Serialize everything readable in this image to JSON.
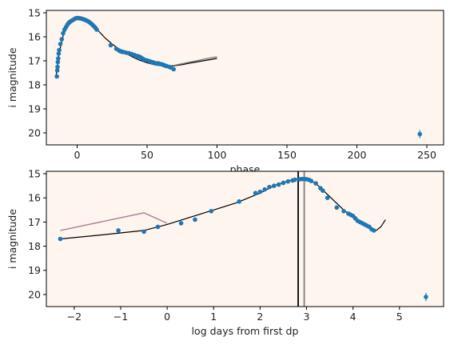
{
  "chart_data": [
    {
      "type": "scatter",
      "xlabel": "phase",
      "ylabel": "i magnitude",
      "xlim": [
        -22,
        262
      ],
      "ylim": [
        20.5,
        14.9
      ],
      "y_inverted": true,
      "xticks": [
        0,
        50,
        100,
        150,
        200,
        250
      ],
      "yticks": [
        15,
        16,
        17,
        18,
        19,
        20
      ],
      "background": "#fdf5ee",
      "colors": {
        "points": "#1f77b4",
        "model": "#000000",
        "model_alt": "#7f7f7f"
      },
      "series": [
        {
          "kind": "points",
          "x": [
            -14.5,
            -14.2,
            -14.0,
            -13.8,
            -13.5,
            -13.2,
            -12.8,
            -12.0,
            -11.0,
            -10.0,
            -9.0,
            -8.0,
            -7.0,
            -6.0,
            -5.0,
            -4.0,
            -3.0,
            -2.0,
            -1.0,
            0.0,
            1.0,
            2.0,
            3.0,
            4.0,
            5.0,
            6.0,
            7.0,
            8.0,
            9.0,
            10.0,
            11.0,
            12.0,
            13.0,
            14.0,
            24.0,
            28.0,
            30.0,
            31.0,
            32.0,
            33.0,
            35.0,
            37.0,
            39.0,
            41.0,
            43.0,
            44.0,
            45.0,
            46.0,
            47.0,
            48.0,
            50.0,
            52.0,
            53.0,
            54.0,
            55.0,
            56.0,
            57.0,
            58.0,
            59.0,
            60.0,
            61.0,
            62.0,
            63.0,
            64.0,
            66.0,
            67.0,
            69.0,
            245.0
          ],
          "y": [
            17.65,
            17.4,
            17.25,
            17.05,
            16.9,
            16.7,
            16.55,
            16.3,
            16.1,
            15.85,
            15.7,
            15.6,
            15.5,
            15.42,
            15.37,
            15.33,
            15.3,
            15.26,
            15.23,
            15.22,
            15.22,
            15.23,
            15.24,
            15.26,
            15.28,
            15.3,
            15.33,
            15.36,
            15.4,
            15.45,
            15.5,
            15.56,
            15.62,
            15.7,
            16.35,
            16.5,
            16.57,
            16.6,
            16.62,
            16.63,
            16.66,
            16.68,
            16.72,
            16.76,
            16.8,
            16.82,
            16.84,
            16.88,
            16.92,
            16.95,
            16.98,
            17.02,
            17.05,
            17.06,
            17.08,
            17.1,
            17.12,
            17.1,
            17.13,
            17.14,
            17.15,
            17.18,
            17.2,
            17.22,
            17.25,
            17.28,
            17.35,
            20.05
          ]
        },
        {
          "kind": "line",
          "name": "",
          "x": [
            -15,
            -13,
            -10,
            -7,
            -4,
            -1,
            2,
            5,
            8,
            12,
            16,
            20,
            25,
            30,
            35,
            40,
            45,
            50,
            55,
            60,
            65,
            70,
            75,
            80,
            85,
            90,
            95,
            100
          ],
          "y": [
            17.6,
            16.7,
            15.95,
            15.55,
            15.33,
            15.22,
            15.2,
            15.24,
            15.35,
            15.55,
            15.8,
            16.05,
            16.3,
            16.52,
            16.7,
            16.85,
            16.98,
            17.08,
            17.16,
            17.2,
            17.22,
            17.2,
            17.16,
            17.1,
            17.05,
            17.0,
            16.95,
            16.9
          ]
        },
        {
          "kind": "line",
          "name": "",
          "x": [
            70,
            75,
            80,
            85,
            90,
            95,
            100
          ],
          "y": [
            17.18,
            17.12,
            17.06,
            17.0,
            16.94,
            16.88,
            16.83
          ]
        }
      ]
    },
    {
      "type": "scatter",
      "xlabel": "log days from first dp",
      "ylabel": "i magnitude",
      "xlim": [
        -2.6,
        5.95
      ],
      "ylim": [
        20.5,
        14.9
      ],
      "y_inverted": true,
      "xticks": [
        -2,
        -1,
        0,
        1,
        2,
        3,
        4,
        5
      ],
      "yticks": [
        15,
        16,
        17,
        18,
        19,
        20
      ],
      "background": "#fdf5ee",
      "colors": {
        "points": "#1f77b4",
        "model": "#000000",
        "model_alt": "#7f7f7f",
        "early": "#b07c9e"
      },
      "vlines": [
        {
          "x": 2.82,
          "color": "#000000"
        },
        {
          "x": 2.95,
          "color": "#7f7f7f"
        }
      ],
      "series": [
        {
          "kind": "points",
          "x": [
            -2.3,
            -1.05,
            -0.5,
            -0.2,
            0.3,
            0.6,
            0.95,
            1.55,
            1.9,
            2.0,
            2.1,
            2.2,
            2.3,
            2.4,
            2.5,
            2.6,
            2.7,
            2.75,
            2.85,
            2.9,
            2.95,
            3.0,
            3.05,
            3.1,
            3.2,
            3.3,
            3.35,
            3.45,
            3.65,
            3.8,
            3.9,
            3.95,
            4.0,
            4.05,
            4.1,
            4.15,
            4.2,
            4.25,
            4.3,
            4.35,
            4.4,
            4.45,
            5.57
          ],
          "y": [
            17.7,
            17.35,
            17.4,
            17.2,
            17.05,
            16.9,
            16.55,
            16.15,
            15.8,
            15.75,
            15.65,
            15.55,
            15.5,
            15.45,
            15.38,
            15.32,
            15.28,
            15.25,
            15.23,
            15.22,
            15.22,
            15.23,
            15.25,
            15.3,
            15.4,
            15.6,
            15.7,
            16.0,
            16.4,
            16.55,
            16.65,
            16.7,
            16.75,
            16.85,
            16.95,
            17.0,
            17.05,
            17.1,
            17.15,
            17.2,
            17.3,
            17.35,
            20.1
          ]
        },
        {
          "kind": "line",
          "name": "",
          "x": [
            -2.3,
            -1.5,
            -0.5,
            0.0,
            0.5,
            1.0,
            1.5,
            2.0,
            2.3,
            2.6,
            2.82,
            3.0,
            3.2,
            3.5,
            3.8,
            4.0,
            4.2,
            4.4,
            4.5,
            4.6,
            4.7
          ],
          "y": [
            17.7,
            17.55,
            17.35,
            17.1,
            16.8,
            16.5,
            16.2,
            15.8,
            15.5,
            15.3,
            15.2,
            15.22,
            15.4,
            15.95,
            16.5,
            16.8,
            17.05,
            17.3,
            17.35,
            17.2,
            16.9
          ]
        },
        {
          "kind": "line",
          "name": "",
          "x": [
            -2.3,
            -0.5,
            0.0
          ],
          "y": [
            17.35,
            16.62,
            17.05
          ]
        }
      ]
    }
  ]
}
